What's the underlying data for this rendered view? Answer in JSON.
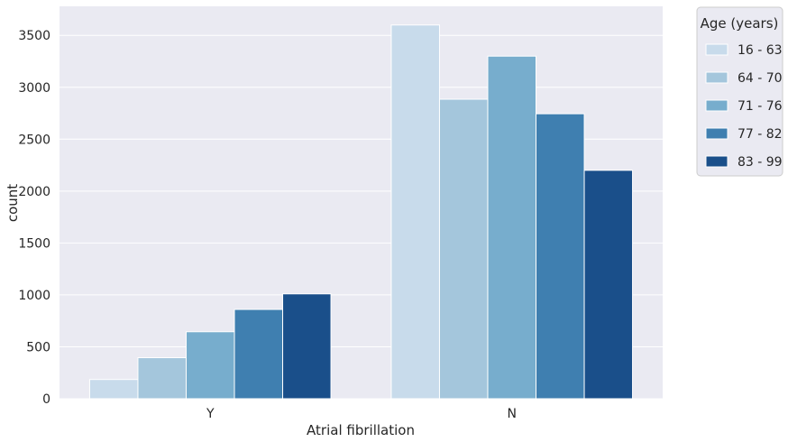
{
  "chart_data": {
    "type": "bar",
    "xlabel": "Atrial fibrillation",
    "ylabel": "count",
    "categories": [
      "Y",
      "N"
    ],
    "ylim": [
      0,
      3780
    ],
    "yticks": [
      0,
      500,
      1000,
      1500,
      2000,
      2500,
      3000,
      3500
    ],
    "grid": true,
    "legend": {
      "title": "Age (years)",
      "placement": "outside-top-right"
    },
    "series": [
      {
        "name": "16 - 63",
        "color": "#c8dbeb",
        "values": [
          185,
          3600
        ]
      },
      {
        "name": "64 - 70",
        "color": "#a4c6dc",
        "values": [
          395,
          2885
        ]
      },
      {
        "name": "71 - 76",
        "color": "#77adcd",
        "values": [
          645,
          3300
        ]
      },
      {
        "name": "77 - 82",
        "color": "#3f7fb0",
        "values": [
          860,
          2745
        ]
      },
      {
        "name": "83 - 99",
        "color": "#1a4f8a",
        "values": [
          1010,
          2200
        ]
      }
    ]
  }
}
